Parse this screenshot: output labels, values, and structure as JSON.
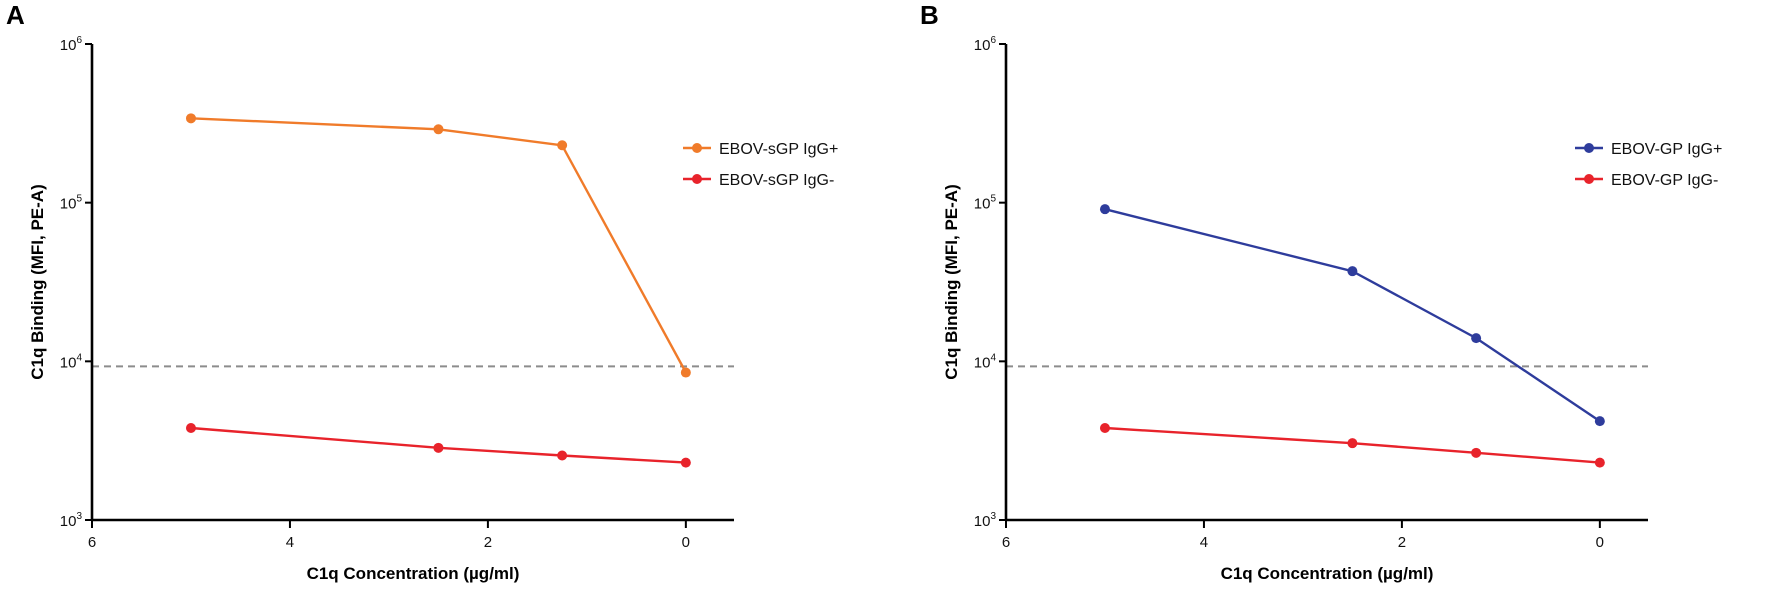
{
  "colors": {
    "orange": "#f07b2a",
    "red": "#e8232b",
    "blue": "#2e3c9c",
    "threshold": "#8c8c8c"
  },
  "chart_data": [
    {
      "panel": "A",
      "type": "line",
      "ylabel": "C1q Binding (MFI, PE-A)",
      "xlabel": "C1q Concentration (µg/ml)",
      "xlim": [
        6,
        0
      ],
      "xticks": [
        "6",
        "4",
        "2",
        "0"
      ],
      "yscale": "log",
      "ylim": [
        1000,
        1000000
      ],
      "ytick_base": "10",
      "ytick_exponents": [
        "3",
        "4",
        "5",
        "6"
      ],
      "threshold": 9300,
      "legend_position": "right",
      "series": [
        {
          "name": "EBOV-sGP IgG+",
          "color": "#f07b2a",
          "x": [
            5,
            2.5,
            1.25,
            0
          ],
          "y": [
            340000,
            290000,
            230000,
            8500
          ]
        },
        {
          "name": "EBOV-sGP IgG-",
          "color": "#e8232b",
          "x": [
            5,
            2.5,
            1.25,
            0
          ],
          "y": [
            3800,
            2850,
            2550,
            2300
          ]
        }
      ]
    },
    {
      "panel": "B",
      "type": "line",
      "ylabel": "C1q Binding (MFI, PE-A)",
      "xlabel": "C1q Concentration (µg/ml)",
      "xlim": [
        6,
        0
      ],
      "xticks": [
        "6",
        "4",
        "2",
        "0"
      ],
      "yscale": "log",
      "ylim": [
        1000,
        1000000
      ],
      "ytick_base": "10",
      "ytick_exponents": [
        "3",
        "4",
        "5",
        "6"
      ],
      "threshold": 9300,
      "legend_position": "right",
      "series": [
        {
          "name": "EBOV-GP IgG+",
          "color": "#2e3c9c",
          "x": [
            5,
            2.5,
            1.25,
            0
          ],
          "y": [
            91000,
            37000,
            14000,
            4200
          ]
        },
        {
          "name": "EBOV-GP IgG-",
          "color": "#e8232b",
          "x": [
            5,
            2.5,
            1.25,
            0
          ],
          "y": [
            3800,
            3050,
            2650,
            2300
          ]
        }
      ]
    }
  ]
}
